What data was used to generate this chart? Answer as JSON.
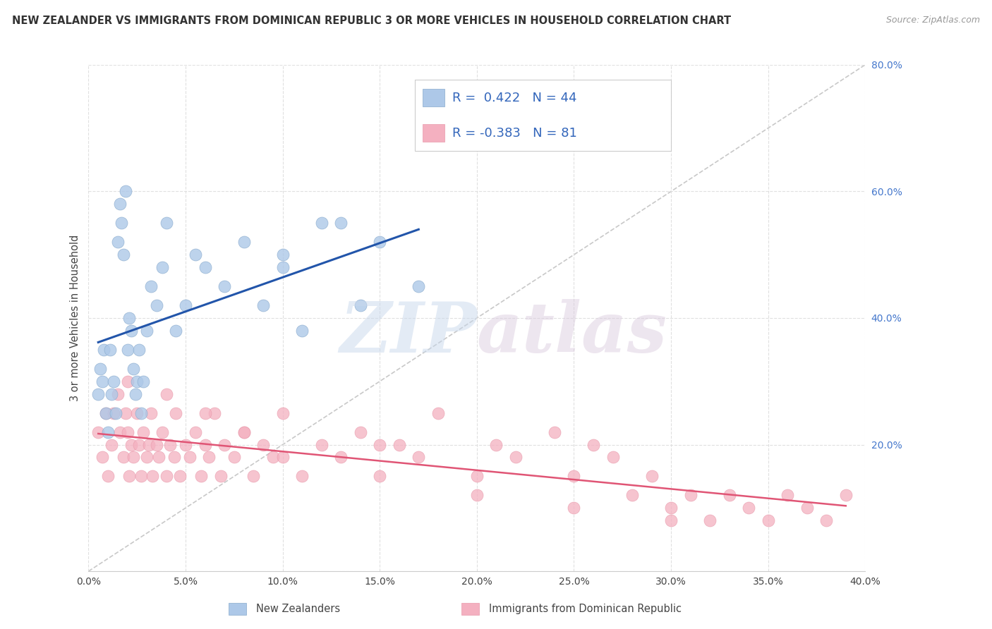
{
  "title": "NEW ZEALANDER VS IMMIGRANTS FROM DOMINICAN REPUBLIC 3 OR MORE VEHICLES IN HOUSEHOLD CORRELATION CHART",
  "source": "Source: ZipAtlas.com",
  "ylabel": "3 or more Vehicles in Household",
  "legend_label_blue": "New Zealanders",
  "legend_label_pink": "Immigrants from Dominican Republic",
  "R_blue": 0.422,
  "N_blue": 44,
  "R_pink": -0.383,
  "N_pink": 81,
  "blue_color": "#adc8e8",
  "pink_color": "#f4b0c0",
  "blue_line_color": "#2255aa",
  "pink_line_color": "#e05575",
  "background_color": "#ffffff",
  "grid_color": "#dddddd",
  "xlim": [
    0.0,
    0.4
  ],
  "ylim": [
    0.0,
    0.8
  ],
  "xticks": [
    0.0,
    0.05,
    0.1,
    0.15,
    0.2,
    0.25,
    0.3,
    0.35,
    0.4
  ],
  "yticks": [
    0.0,
    0.2,
    0.4,
    0.6,
    0.8
  ],
  "xtick_labels": [
    "0.0%",
    "5.0%",
    "10.0%",
    "15.0%",
    "20.0%",
    "25.0%",
    "30.0%",
    "35.0%",
    "40.0%"
  ],
  "ytick_labels": [
    "",
    "20.0%",
    "40.0%",
    "60.0%",
    "80.0%"
  ],
  "blue_scatter_x": [
    0.005,
    0.006,
    0.007,
    0.008,
    0.009,
    0.01,
    0.011,
    0.012,
    0.013,
    0.014,
    0.015,
    0.016,
    0.017,
    0.018,
    0.019,
    0.02,
    0.021,
    0.022,
    0.023,
    0.024,
    0.025,
    0.026,
    0.027,
    0.028,
    0.03,
    0.032,
    0.035,
    0.038,
    0.04,
    0.045,
    0.05,
    0.055,
    0.06,
    0.07,
    0.08,
    0.09,
    0.1,
    0.11,
    0.13,
    0.14,
    0.15,
    0.17,
    0.1,
    0.12
  ],
  "blue_scatter_y": [
    0.28,
    0.32,
    0.3,
    0.35,
    0.25,
    0.22,
    0.35,
    0.28,
    0.3,
    0.25,
    0.52,
    0.58,
    0.55,
    0.5,
    0.6,
    0.35,
    0.4,
    0.38,
    0.32,
    0.28,
    0.3,
    0.35,
    0.25,
    0.3,
    0.38,
    0.45,
    0.42,
    0.48,
    0.55,
    0.38,
    0.42,
    0.5,
    0.48,
    0.45,
    0.52,
    0.42,
    0.48,
    0.38,
    0.55,
    0.42,
    0.52,
    0.45,
    0.5,
    0.55
  ],
  "pink_scatter_x": [
    0.005,
    0.007,
    0.009,
    0.01,
    0.012,
    0.013,
    0.015,
    0.016,
    0.018,
    0.019,
    0.02,
    0.021,
    0.022,
    0.023,
    0.025,
    0.026,
    0.027,
    0.028,
    0.03,
    0.031,
    0.032,
    0.033,
    0.035,
    0.036,
    0.038,
    0.04,
    0.042,
    0.044,
    0.045,
    0.047,
    0.05,
    0.052,
    0.055,
    0.058,
    0.06,
    0.062,
    0.065,
    0.068,
    0.07,
    0.075,
    0.08,
    0.085,
    0.09,
    0.095,
    0.1,
    0.11,
    0.12,
    0.13,
    0.14,
    0.15,
    0.16,
    0.17,
    0.18,
    0.2,
    0.21,
    0.22,
    0.24,
    0.25,
    0.26,
    0.27,
    0.28,
    0.29,
    0.3,
    0.31,
    0.32,
    0.33,
    0.34,
    0.35,
    0.36,
    0.37,
    0.38,
    0.39,
    0.02,
    0.04,
    0.06,
    0.08,
    0.1,
    0.15,
    0.2,
    0.25,
    0.3
  ],
  "pink_scatter_y": [
    0.22,
    0.18,
    0.25,
    0.15,
    0.2,
    0.25,
    0.28,
    0.22,
    0.18,
    0.25,
    0.22,
    0.15,
    0.2,
    0.18,
    0.25,
    0.2,
    0.15,
    0.22,
    0.18,
    0.2,
    0.25,
    0.15,
    0.2,
    0.18,
    0.22,
    0.15,
    0.2,
    0.18,
    0.25,
    0.15,
    0.2,
    0.18,
    0.22,
    0.15,
    0.2,
    0.18,
    0.25,
    0.15,
    0.2,
    0.18,
    0.22,
    0.15,
    0.2,
    0.18,
    0.25,
    0.15,
    0.2,
    0.18,
    0.22,
    0.15,
    0.2,
    0.18,
    0.25,
    0.15,
    0.2,
    0.18,
    0.22,
    0.15,
    0.2,
    0.18,
    0.12,
    0.15,
    0.1,
    0.12,
    0.08,
    0.12,
    0.1,
    0.08,
    0.12,
    0.1,
    0.08,
    0.12,
    0.3,
    0.28,
    0.25,
    0.22,
    0.18,
    0.2,
    0.12,
    0.1,
    0.08
  ],
  "watermark_zip": "ZIP",
  "watermark_atlas": "atlas",
  "figsize": [
    14.06,
    8.92
  ],
  "dpi": 100
}
